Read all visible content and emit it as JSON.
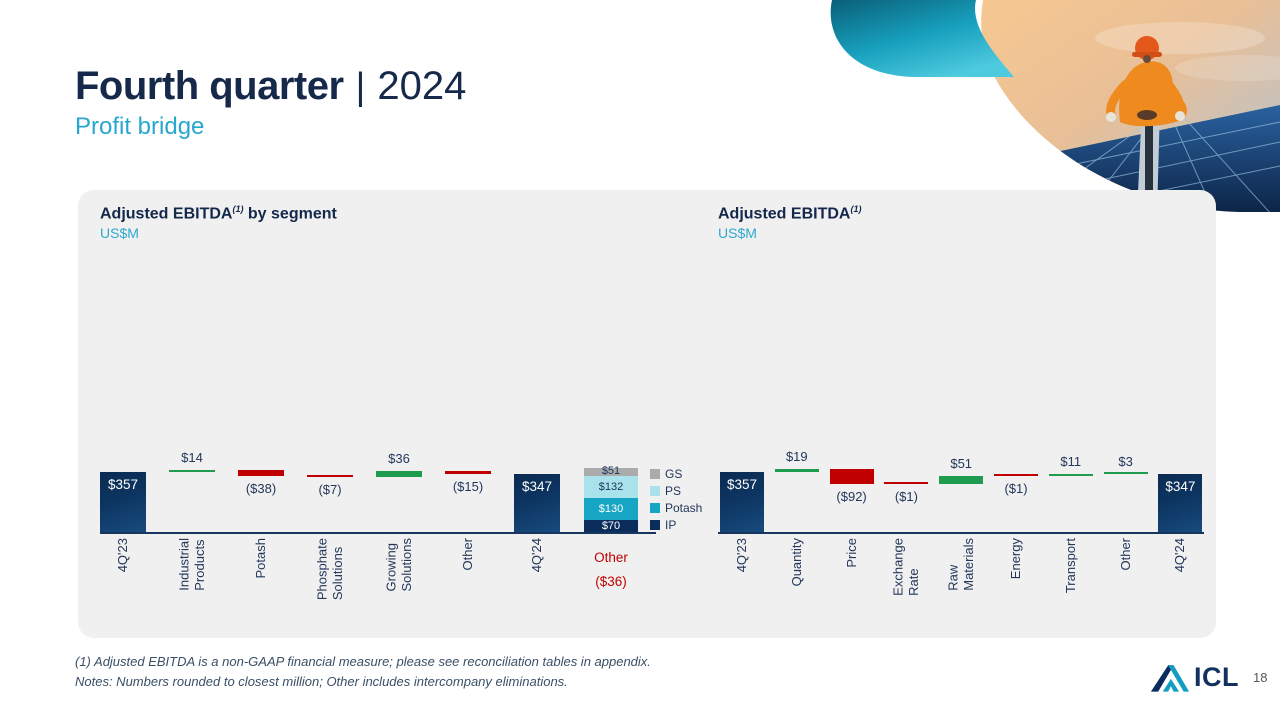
{
  "slide": {
    "title_main": "Fourth quarter",
    "title_divider": "|",
    "title_year": "2024",
    "subtitle": "Profit bridge",
    "footnote_line1": "(1) Adjusted EBITDA is a non-GAAP financial measure; please see reconciliation tables in appendix.",
    "footnote_line2": "Notes: Numbers rounded to closest million; Other includes intercompany eliminations.",
    "logo_text": "ICL",
    "page_number": "18"
  },
  "colors": {
    "navy": "#0b2d5b",
    "teal_accent": "#27a7cf",
    "green": "#1e9b4e",
    "red": "#c00000",
    "panel_bg": "#f0f0f0",
    "axis": "#16365f",
    "label": "#23375a"
  },
  "chart_data": [
    {
      "type": "waterfall",
      "title": "Adjusted EBITDA",
      "title_sup": "(1)",
      "title_suffix": " by segment",
      "unit": "US$M",
      "ylim": [
        0,
        380
      ],
      "grid": "off",
      "items": [
        {
          "label": "4Q'23",
          "value": 357,
          "display": "$357",
          "kind": "total"
        },
        {
          "label": "Industrial\nProducts",
          "value": 14,
          "display": "$14",
          "kind": "delta"
        },
        {
          "label": "Potash",
          "value": -38,
          "display": "($38)",
          "kind": "delta"
        },
        {
          "label": "Phosphate\nSolutions",
          "value": -7,
          "display": "($7)",
          "kind": "delta"
        },
        {
          "label": "Growing\nSolutions",
          "value": 36,
          "display": "$36",
          "kind": "delta"
        },
        {
          "label": "Other",
          "value": -15,
          "display": "($15)",
          "kind": "delta"
        },
        {
          "label": "4Q'24",
          "value": 347,
          "display": "$347",
          "kind": "total"
        }
      ],
      "stacked_bar": {
        "label": "Other\n($36)",
        "segments_bottom_up": [
          {
            "name": "IP",
            "value": 70,
            "display": "$70",
            "color": "#0b2d5b",
            "text_color": "#ffffff"
          },
          {
            "name": "Potash",
            "value": 130,
            "display": "$130",
            "color": "#17a5c4",
            "text_color": "#ffffff"
          },
          {
            "name": "PS",
            "value": 132,
            "display": "$132",
            "color": "#a9e2ea",
            "text_color": "#17355c"
          },
          {
            "name": "GS",
            "value": 51,
            "display": "$51",
            "color": "#ababab",
            "text_color": "#17355c"
          }
        ]
      },
      "legend": [
        {
          "label": "GS",
          "color": "#ababab"
        },
        {
          "label": "PS",
          "color": "#a9e2ea"
        },
        {
          "label": "Potash",
          "color": "#17a5c4"
        },
        {
          "label": "IP",
          "color": "#0b2d5b"
        }
      ],
      "legend_position": "right-of-stacked-bar"
    },
    {
      "type": "waterfall",
      "title": "Adjusted EBITDA",
      "title_sup": "(1)",
      "title_suffix": "",
      "unit": "US$M",
      "ylim": [
        0,
        380
      ],
      "grid": "off",
      "items": [
        {
          "label": "4Q'23",
          "value": 357,
          "display": "$357",
          "kind": "total"
        },
        {
          "label": "Quantity",
          "value": 19,
          "display": "$19",
          "kind": "delta"
        },
        {
          "label": "Price",
          "value": -92,
          "display": "($92)",
          "kind": "delta"
        },
        {
          "label": "Exchange\nRate",
          "value": -1,
          "display": "($1)",
          "kind": "delta"
        },
        {
          "label": "Raw\nMaterials",
          "value": 51,
          "display": "$51",
          "kind": "delta"
        },
        {
          "label": "Energy",
          "value": -1,
          "display": "($1)",
          "kind": "delta"
        },
        {
          "label": "Transport",
          "value": 11,
          "display": "$11",
          "kind": "delta"
        },
        {
          "label": "Other",
          "value": 3,
          "display": "$3",
          "kind": "delta"
        },
        {
          "label": "4Q'24",
          "value": 347,
          "display": "$347",
          "kind": "total"
        }
      ]
    }
  ]
}
